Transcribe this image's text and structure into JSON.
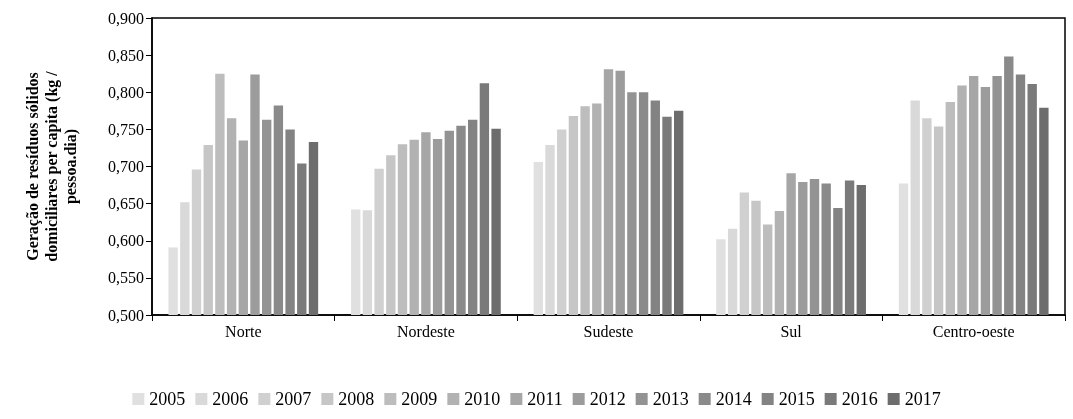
{
  "chart_data": {
    "type": "bar",
    "ylabel": "Geração de resíduos sólidos domiciliares per capita (kg / pessoa.dia)",
    "categories": [
      "Norte",
      "Nordeste",
      "Sudeste",
      "Sul",
      "Centro-oeste"
    ],
    "series": [
      {
        "name": "2005",
        "color": "#e0e0e0",
        "values": [
          0.591,
          0.642,
          0.706,
          0.602,
          0.677
        ]
      },
      {
        "name": "2006",
        "color": "#d9d9d9",
        "values": [
          0.652,
          0.641,
          0.729,
          0.616,
          0.789
        ]
      },
      {
        "name": "2007",
        "color": "#d0d0d0",
        "values": [
          0.696,
          0.697,
          0.75,
          0.665,
          0.765
        ]
      },
      {
        "name": "2008",
        "color": "#c6c6c6",
        "values": [
          0.729,
          0.715,
          0.768,
          0.654,
          0.754
        ]
      },
      {
        "name": "2009",
        "color": "#bdbdbd",
        "values": [
          0.825,
          0.73,
          0.781,
          0.622,
          0.787
        ]
      },
      {
        "name": "2010",
        "color": "#b2b2b2",
        "values": [
          0.765,
          0.736,
          0.785,
          0.64,
          0.809
        ]
      },
      {
        "name": "2011",
        "color": "#a6a6a6",
        "values": [
          0.735,
          0.746,
          0.831,
          0.691,
          0.822
        ]
      },
      {
        "name": "2012",
        "color": "#9c9c9c",
        "values": [
          0.824,
          0.737,
          0.829,
          0.679,
          0.807
        ]
      },
      {
        "name": "2013",
        "color": "#939393",
        "values": [
          0.763,
          0.748,
          0.8,
          0.683,
          0.822
        ]
      },
      {
        "name": "2014",
        "color": "#8a8a8a",
        "values": [
          0.782,
          0.755,
          0.8,
          0.677,
          0.848
        ]
      },
      {
        "name": "2015",
        "color": "#838383",
        "values": [
          0.75,
          0.763,
          0.789,
          0.644,
          0.824
        ]
      },
      {
        "name": "2016",
        "color": "#7a7a7a",
        "values": [
          0.704,
          0.812,
          0.767,
          0.681,
          0.811
        ]
      },
      {
        "name": "2017",
        "color": "#6d6d6d",
        "values": [
          0.733,
          0.751,
          0.775,
          0.675,
          0.779
        ]
      }
    ],
    "ylim": [
      0.5,
      0.9
    ],
    "yticks": [
      {
        "value": 0.5,
        "label": "0,500"
      },
      {
        "value": 0.55,
        "label": "0,550"
      },
      {
        "value": 0.6,
        "label": "0,600"
      },
      {
        "value": 0.65,
        "label": "0,650"
      },
      {
        "value": 0.7,
        "label": "0,700"
      },
      {
        "value": 0.75,
        "label": "0,750"
      },
      {
        "value": 0.8,
        "label": "0,800"
      },
      {
        "value": 0.85,
        "label": "0,850"
      },
      {
        "value": 0.9,
        "label": "0,900"
      }
    ],
    "grid": false,
    "legend": "bottom"
  }
}
